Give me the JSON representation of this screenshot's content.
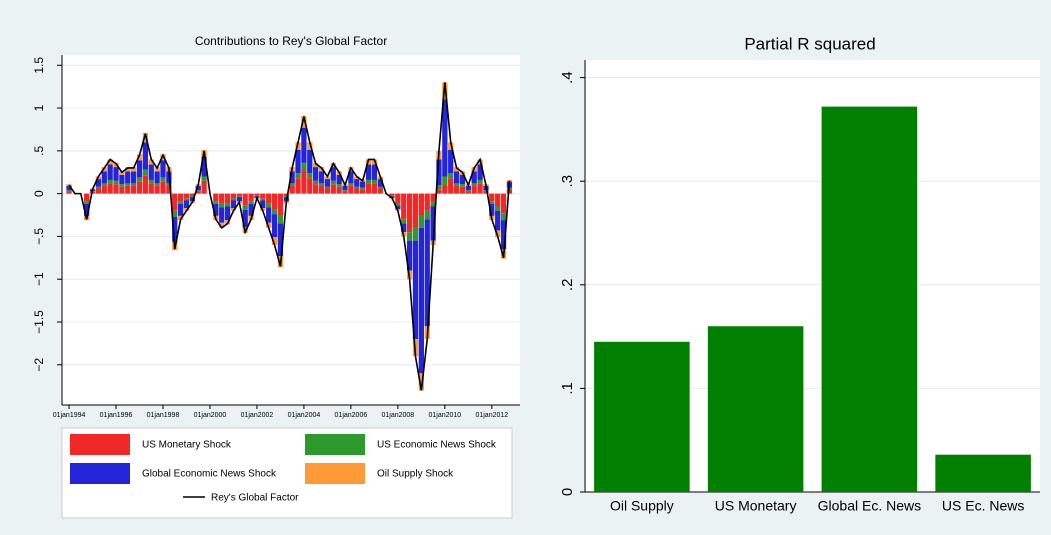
{
  "chart_data": [
    {
      "type": "stacked-bar",
      "title": "Contributions to Rey's Global Factor",
      "x": [
        1994,
        1994.25,
        1994.5,
        1994.75,
        1995,
        1995.25,
        1995.5,
        1995.75,
        1996,
        1996.25,
        1996.5,
        1996.75,
        1997,
        1997.25,
        1997.5,
        1997.75,
        1998,
        1998.25,
        1998.5,
        1998.75,
        1999,
        1999.25,
        1999.5,
        1999.75,
        2000,
        2000.25,
        2000.5,
        2000.75,
        2001,
        2001.25,
        2001.5,
        2001.75,
        2002,
        2002.25,
        2002.5,
        2002.75,
        2003,
        2003.25,
        2003.5,
        2003.75,
        2004,
        2004.25,
        2004.5,
        2004.75,
        2005,
        2005.25,
        2005.5,
        2005.75,
        2006,
        2006.25,
        2006.5,
        2006.75,
        2007,
        2007.25,
        2007.5,
        2007.75,
        2008,
        2008.25,
        2008.5,
        2008.75,
        2009,
        2009.25,
        2009.5,
        2009.75,
        2010,
        2010.25,
        2010.5,
        2010.75,
        2011,
        2011.25,
        2011.5,
        2011.75,
        2012,
        2012.25,
        2012.5,
        2012.75
      ],
      "series": [
        {
          "name": "US Monetary Shock",
          "color": "#f02828",
          "values": [
            0.03,
            0,
            0,
            -0.09,
            0.02,
            0.06,
            0.09,
            0.12,
            0.11,
            0.08,
            0.09,
            0.09,
            0.14,
            0.21,
            0.12,
            0.09,
            0.14,
            0.09,
            -0.2,
            -0.09,
            -0.06,
            -0.03,
            0.03,
            0.15,
            0,
            -0.09,
            -0.12,
            -0.11,
            -0.06,
            -0.03,
            -0.14,
            -0.09,
            -0.02,
            -0.06,
            -0.12,
            -0.18,
            -0.26,
            -0.03,
            0.09,
            0.18,
            0.27,
            0.18,
            0.11,
            0.09,
            0.06,
            0.11,
            0.08,
            0.03,
            0.09,
            0.06,
            0.05,
            0.12,
            0.12,
            0.06,
            0,
            -0.02,
            -0.12,
            -0.3,
            -0.45,
            -0.4,
            -0.25,
            -0.2,
            -0.1,
            0.05,
            0.1,
            0.18,
            0.09,
            0.08,
            0.03,
            0.09,
            0.12,
            0.03,
            -0.09,
            -0.15,
            -0.23,
            0.05
          ]
        },
        {
          "name": "US Economic News Shock",
          "color": "#2e9a2e",
          "values": [
            0.01,
            0,
            0,
            -0.03,
            0.01,
            0.02,
            0.03,
            0.04,
            0.04,
            0.03,
            0.03,
            0.03,
            0.05,
            0.07,
            0.04,
            0.03,
            0.05,
            0.03,
            -0.07,
            -0.03,
            -0.02,
            -0.01,
            0.01,
            0.05,
            0,
            -0.03,
            -0.04,
            -0.04,
            -0.02,
            -0.01,
            -0.05,
            -0.03,
            -0.01,
            -0.02,
            -0.04,
            -0.06,
            -0.09,
            -0.01,
            0.03,
            0.06,
            0.09,
            0.06,
            0.04,
            0.03,
            0.02,
            0.04,
            0.03,
            0.01,
            0.03,
            0.02,
            0.02,
            0.04,
            0.04,
            0.02,
            0,
            -0.01,
            -0.02,
            -0.05,
            -0.1,
            -0.15,
            -0.15,
            -0.1,
            -0.05,
            0.05,
            0.1,
            0.06,
            0.03,
            0.03,
            0.01,
            0.03,
            0.04,
            0.01,
            -0.03,
            -0.05,
            -0.08,
            0.02
          ]
        },
        {
          "name": "Global Economic News Shock",
          "color": "#2424d8",
          "values": [
            0.05,
            0,
            0,
            -0.14,
            0.02,
            0.09,
            0.14,
            0.18,
            0.16,
            0.11,
            0.14,
            0.14,
            0.2,
            0.32,
            0.18,
            0.14,
            0.2,
            0.14,
            -0.29,
            -0.14,
            -0.09,
            -0.05,
            0.05,
            0.23,
            0,
            -0.14,
            -0.18,
            -0.16,
            -0.09,
            -0.05,
            -0.2,
            -0.14,
            -0.02,
            -0.09,
            -0.18,
            -0.27,
            -0.38,
            -0.05,
            0.14,
            0.27,
            0.41,
            0.27,
            0.16,
            0.14,
            0.09,
            0.16,
            0.11,
            0.05,
            0.14,
            0.09,
            0.07,
            0.18,
            0.18,
            0.09,
            0,
            -0.02,
            -0.04,
            -0.1,
            -0.35,
            -1.15,
            -1.7,
            -1.25,
            -0.4,
            0.3,
            0.9,
            0.27,
            0.14,
            0.11,
            0.05,
            0.14,
            0.18,
            0.05,
            -0.14,
            -0.23,
            -0.34,
            0.07
          ]
        },
        {
          "name": "Oil Supply Shock",
          "color": "#ff9a36",
          "values": [
            0.02,
            0,
            0,
            -0.05,
            0.01,
            0.03,
            0.05,
            0.06,
            0.05,
            0.04,
            0.05,
            0.05,
            0.07,
            0.11,
            0.06,
            0.05,
            0.07,
            0.05,
            -0.1,
            -0.05,
            -0.03,
            -0.02,
            0.02,
            0.08,
            0,
            -0.05,
            -0.06,
            -0.05,
            -0.03,
            -0.02,
            -0.07,
            -0.05,
            -0.01,
            -0.03,
            -0.06,
            -0.09,
            -0.13,
            -0.02,
            0.05,
            0.09,
            0.14,
            0.09,
            0.05,
            0.05,
            0.03,
            0.05,
            0.04,
            0.02,
            0.05,
            0.03,
            0.02,
            0.06,
            0.06,
            0.03,
            0,
            -0.01,
            -0.02,
            -0.05,
            -0.1,
            -0.2,
            -0.2,
            -0.15,
            -0.05,
            0.1,
            0.2,
            0.09,
            0.05,
            0.04,
            0.02,
            0.05,
            0.06,
            0.02,
            -0.05,
            -0.08,
            -0.11,
            0.02
          ]
        },
        {
          "name": "Rey's Global Factor",
          "type": "line",
          "color": "#000000",
          "values": [
            0.1,
            0,
            0,
            -0.3,
            0.05,
            0.2,
            0.3,
            0.4,
            0.35,
            0.25,
            0.3,
            0.3,
            0.45,
            0.7,
            0.4,
            0.3,
            0.45,
            0.3,
            -0.65,
            -0.3,
            -0.2,
            -0.1,
            0.1,
            0.5,
            0,
            -0.3,
            -0.4,
            -0.35,
            -0.2,
            -0.1,
            -0.45,
            -0.3,
            -0.05,
            -0.2,
            -0.4,
            -0.6,
            -0.85,
            -0.1,
            0.3,
            0.6,
            0.9,
            0.6,
            0.35,
            0.3,
            0.2,
            0.35,
            0.25,
            0.1,
            0.3,
            0.2,
            0.15,
            0.4,
            0.4,
            0.2,
            0,
            -0.05,
            -0.2,
            -0.5,
            -1,
            -1.9,
            -2.3,
            -1.7,
            -0.6,
            0.5,
            1.3,
            0.6,
            0.3,
            0.25,
            0.1,
            0.3,
            0.4,
            0.1,
            -0.3,
            -0.5,
            -0.75,
            0.15
          ]
        }
      ],
      "xlim": [
        1993.7,
        2013.2
      ],
      "xticks": [
        {
          "value": 1994,
          "label": "01jan1994"
        },
        {
          "value": 1996,
          "label": "01jan1996"
        },
        {
          "value": 1998,
          "label": "01jan1998"
        },
        {
          "value": 2000,
          "label": "01jan2000"
        },
        {
          "value": 2002,
          "label": "01jan2002"
        },
        {
          "value": 2004,
          "label": "01jan2004"
        },
        {
          "value": 2006,
          "label": "01jan2006"
        },
        {
          "value": 2008,
          "label": "01jan2008"
        },
        {
          "value": 2010,
          "label": "01jan2010"
        },
        {
          "value": 2012,
          "label": "01jan2012"
        }
      ],
      "ylim": [
        -2.47,
        1.62
      ],
      "yticks": [
        {
          "value": -2,
          "label": "−2"
        },
        {
          "value": -1.5,
          "label": "−1.5"
        },
        {
          "value": -1,
          "label": "−1"
        },
        {
          "value": -0.5,
          "label": "−.5"
        },
        0,
        {
          "value": 0.5,
          "label": ".5"
        },
        1,
        1.5
      ],
      "grid": true
    },
    {
      "type": "bar",
      "title": "Partial R squared",
      "categories": [
        "Oil Supply",
        "US Monetary",
        "Global Ec. News",
        "US Ec. News"
      ],
      "values": [
        0.145,
        0.16,
        0.372,
        0.036
      ],
      "color": "#007f00",
      "ylim": [
        0,
        0.417
      ],
      "yticks": [
        0,
        {
          "value": 0.1,
          "label": ".1"
        },
        {
          "value": 0.2,
          "label": ".2"
        },
        {
          "value": 0.3,
          "label": ".3"
        },
        {
          "value": 0.4,
          "label": ".4"
        }
      ],
      "grid": true
    }
  ]
}
